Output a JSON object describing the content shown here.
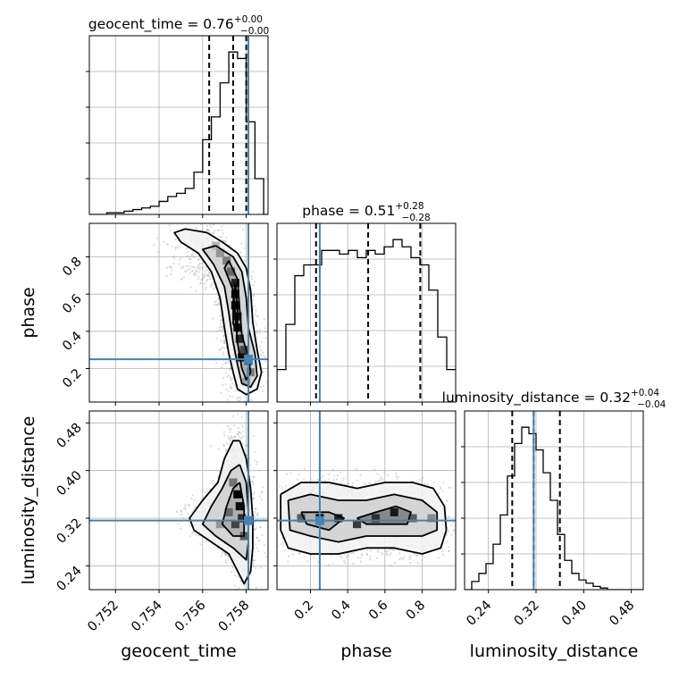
{
  "chart_data": {
    "type": "corner",
    "parameters": [
      "geocent_time",
      "phase",
      "luminosity_distance"
    ],
    "titles": {
      "geocent_time": {
        "name": "geocent_time",
        "median": "0.76",
        "plus": "+0.00",
        "minus": "−0.00"
      },
      "phase": {
        "name": "phase",
        "median": "0.51",
        "plus": "+0.28",
        "minus": "−0.28"
      },
      "luminosity_distance": {
        "name": "luminosity_distance",
        "median": "0.32",
        "plus": "+0.04",
        "minus": "−0.04"
      }
    },
    "ranges": {
      "geocent_time": [
        0.7508,
        0.759
      ],
      "phase": [
        0.02,
        0.98
      ],
      "luminosity_distance": [
        0.2,
        0.5
      ]
    },
    "ticks": {
      "geocent_time": [
        "0.752",
        "0.754",
        "0.756",
        "0.758"
      ],
      "phase": [
        "0.2",
        "0.4",
        "0.6",
        "0.8"
      ],
      "luminosity_distance": [
        "0.24",
        "0.32",
        "0.40",
        "0.48"
      ]
    },
    "truths": {
      "geocent_time": 0.7581,
      "phase": 0.25,
      "luminosity_distance": 0.316
    },
    "quantiles": {
      "geocent_time": [
        0.7563,
        0.7574,
        0.758
      ],
      "phase": [
        0.23,
        0.51,
        0.79
      ],
      "luminosity_distance": [
        0.28,
        0.316,
        0.36
      ]
    },
    "histograms": {
      "geocent_time": {
        "bin_edges": [
          0.7508,
          0.7512,
          0.7516,
          0.752,
          0.7524,
          0.7528,
          0.7532,
          0.7536,
          0.754,
          0.7544,
          0.7548,
          0.7552,
          0.7556,
          0.756,
          0.7564,
          0.7568,
          0.7572,
          0.7576,
          0.758,
          0.7584,
          0.7588,
          0.759
        ],
        "counts": [
          0,
          0,
          1,
          1,
          2,
          3,
          4,
          5,
          8,
          11,
          13,
          16,
          26,
          46,
          60,
          81,
          100,
          96,
          57,
          22,
          0
        ]
      },
      "phase": {
        "bin_edges": [
          0.02,
          0.068,
          0.116,
          0.164,
          0.212,
          0.26,
          0.308,
          0.356,
          0.404,
          0.452,
          0.5,
          0.548,
          0.596,
          0.644,
          0.692,
          0.74,
          0.788,
          0.836,
          0.884,
          0.932,
          0.98
        ],
        "counts": [
          18,
          43,
          70,
          76,
          76,
          84,
          84,
          82,
          84,
          80,
          84,
          82,
          86,
          90,
          86,
          80,
          76,
          62,
          36,
          18
        ]
      },
      "luminosity_distance": {
        "bin_edges": [
          0.2,
          0.212,
          0.224,
          0.236,
          0.248,
          0.26,
          0.272,
          0.284,
          0.296,
          0.308,
          0.32,
          0.332,
          0.344,
          0.356,
          0.368,
          0.38,
          0.392,
          0.404,
          0.416,
          0.428,
          0.44,
          0.452,
          0.464,
          0.476,
          0.488,
          0.5
        ],
        "counts": [
          0,
          5,
          10,
          16,
          28,
          46,
          70,
          90,
          100,
          96,
          86,
          72,
          55,
          34,
          18,
          10,
          6,
          4,
          2,
          1,
          0,
          0,
          0,
          0,
          0
        ]
      }
    },
    "pairs": [
      {
        "x": "geocent_time",
        "y": "phase",
        "contours": [
          [
            [
              0.7562,
              0.93
            ],
            [
              0.7569,
              0.88
            ],
            [
              0.7576,
              0.82
            ],
            [
              0.758,
              0.74
            ],
            [
              0.7582,
              0.62
            ],
            [
              0.7583,
              0.45
            ],
            [
              0.7585,
              0.3
            ],
            [
              0.7587,
              0.18
            ],
            [
              0.7585,
              0.09
            ],
            [
              0.758,
              0.06
            ],
            [
              0.7576,
              0.09
            ],
            [
              0.7574,
              0.18
            ],
            [
              0.7572,
              0.28
            ],
            [
              0.757,
              0.42
            ],
            [
              0.7568,
              0.58
            ],
            [
              0.7564,
              0.72
            ],
            [
              0.7558,
              0.82
            ],
            [
              0.755,
              0.88
            ],
            [
              0.7547,
              0.93
            ],
            [
              0.7552,
              0.95
            ],
            [
              0.7562,
              0.93
            ]
          ],
          [
            [
              0.7566,
              0.86
            ],
            [
              0.7574,
              0.8
            ],
            [
              0.7578,
              0.72
            ],
            [
              0.758,
              0.58
            ],
            [
              0.7581,
              0.42
            ],
            [
              0.7584,
              0.28
            ],
            [
              0.7585,
              0.16
            ],
            [
              0.7582,
              0.1
            ],
            [
              0.7578,
              0.12
            ],
            [
              0.7576,
              0.22
            ],
            [
              0.7574,
              0.34
            ],
            [
              0.7572,
              0.5
            ],
            [
              0.757,
              0.64
            ],
            [
              0.7565,
              0.76
            ],
            [
              0.756,
              0.84
            ],
            [
              0.7566,
              0.86
            ]
          ],
          [
            [
              0.7572,
              0.78
            ],
            [
              0.7576,
              0.68
            ],
            [
              0.7577,
              0.52
            ],
            [
              0.7578,
              0.38
            ],
            [
              0.7581,
              0.26
            ],
            [
              0.7582,
              0.18
            ],
            [
              0.758,
              0.14
            ],
            [
              0.7578,
              0.2
            ],
            [
              0.7576,
              0.34
            ],
            [
              0.7575,
              0.48
            ],
            [
              0.7574,
              0.62
            ],
            [
              0.757,
              0.74
            ],
            [
              0.7572,
              0.78
            ]
          ],
          [
            [
              0.7575,
              0.66
            ],
            [
              0.7576,
              0.52
            ],
            [
              0.7576,
              0.4
            ],
            [
              0.7574,
              0.44
            ],
            [
              0.7574,
              0.56
            ],
            [
              0.7575,
              0.66
            ]
          ]
        ],
        "density": [
          {
            "x": 0.7566,
            "y": 0.86,
            "v": 0.2
          },
          {
            "x": 0.7568,
            "y": 0.82,
            "v": 0.35
          },
          {
            "x": 0.7571,
            "y": 0.78,
            "v": 0.45
          },
          {
            "x": 0.7573,
            "y": 0.72,
            "v": 0.55
          },
          {
            "x": 0.7575,
            "y": 0.66,
            "v": 0.85
          },
          {
            "x": 0.7575,
            "y": 0.6,
            "v": 0.95
          },
          {
            "x": 0.7575,
            "y": 0.54,
            "v": 1.0
          },
          {
            "x": 0.7576,
            "y": 0.48,
            "v": 0.9
          },
          {
            "x": 0.7576,
            "y": 0.42,
            "v": 0.95
          },
          {
            "x": 0.7577,
            "y": 0.36,
            "v": 0.85
          },
          {
            "x": 0.7579,
            "y": 0.3,
            "v": 0.7
          },
          {
            "x": 0.7581,
            "y": 0.24,
            "v": 0.6
          },
          {
            "x": 0.7582,
            "y": 0.18,
            "v": 0.45
          },
          {
            "x": 0.758,
            "y": 0.13,
            "v": 0.3
          },
          {
            "x": 0.7578,
            "y": 0.26,
            "v": 0.95
          }
        ]
      },
      {
        "x": "geocent_time",
        "y": "luminosity_distance",
        "contours": [
          [
            [
              0.7577,
              0.45
            ],
            [
              0.758,
              0.42
            ],
            [
              0.7582,
              0.37
            ],
            [
              0.7583,
              0.32
            ],
            [
              0.7583,
              0.27
            ],
            [
              0.7582,
              0.23
            ],
            [
              0.7579,
              0.21
            ],
            [
              0.7572,
              0.26
            ],
            [
              0.7564,
              0.28
            ],
            [
              0.7556,
              0.3
            ],
            [
              0.7554,
              0.32
            ],
            [
              0.756,
              0.35
            ],
            [
              0.7567,
              0.38
            ],
            [
              0.757,
              0.42
            ],
            [
              0.7574,
              0.45
            ],
            [
              0.7577,
              0.45
            ]
          ],
          [
            [
              0.7577,
              0.41
            ],
            [
              0.758,
              0.38
            ],
            [
              0.7581,
              0.33
            ],
            [
              0.7581,
              0.28
            ],
            [
              0.758,
              0.25
            ],
            [
              0.7574,
              0.27
            ],
            [
              0.7566,
              0.29
            ],
            [
              0.756,
              0.31
            ],
            [
              0.7564,
              0.34
            ],
            [
              0.7569,
              0.37
            ],
            [
              0.7573,
              0.4
            ],
            [
              0.7577,
              0.41
            ]
          ],
          [
            [
              0.7577,
              0.38
            ],
            [
              0.7579,
              0.34
            ],
            [
              0.7579,
              0.29
            ],
            [
              0.7574,
              0.29
            ],
            [
              0.7569,
              0.31
            ],
            [
              0.7571,
              0.34
            ],
            [
              0.7574,
              0.37
            ],
            [
              0.7577,
              0.38
            ]
          ]
        ],
        "density": [
          {
            "x": 0.7576,
            "y": 0.36,
            "v": 1.0
          },
          {
            "x": 0.7577,
            "y": 0.34,
            "v": 0.95
          },
          {
            "x": 0.7578,
            "y": 0.32,
            "v": 0.8
          },
          {
            "x": 0.7575,
            "y": 0.31,
            "v": 0.7
          },
          {
            "x": 0.7572,
            "y": 0.33,
            "v": 0.55
          },
          {
            "x": 0.7568,
            "y": 0.31,
            "v": 0.35
          },
          {
            "x": 0.7579,
            "y": 0.29,
            "v": 0.6
          },
          {
            "x": 0.7574,
            "y": 0.38,
            "v": 0.5
          }
        ]
      },
      {
        "x": "phase",
        "y": "luminosity_distance",
        "contours": [
          [
            [
              0.04,
              0.36
            ],
            [
              0.15,
              0.38
            ],
            [
              0.3,
              0.38
            ],
            [
              0.45,
              0.37
            ],
            [
              0.6,
              0.38
            ],
            [
              0.75,
              0.38
            ],
            [
              0.86,
              0.37
            ],
            [
              0.92,
              0.34
            ],
            [
              0.93,
              0.3
            ],
            [
              0.9,
              0.27
            ],
            [
              0.8,
              0.26
            ],
            [
              0.65,
              0.27
            ],
            [
              0.5,
              0.27
            ],
            [
              0.35,
              0.26
            ],
            [
              0.2,
              0.26
            ],
            [
              0.08,
              0.27
            ],
            [
              0.04,
              0.3
            ],
            [
              0.04,
              0.36
            ]
          ],
          [
            [
              0.08,
              0.35
            ],
            [
              0.2,
              0.36
            ],
            [
              0.35,
              0.35
            ],
            [
              0.5,
              0.35
            ],
            [
              0.65,
              0.36
            ],
            [
              0.8,
              0.35
            ],
            [
              0.88,
              0.33
            ],
            [
              0.88,
              0.3
            ],
            [
              0.8,
              0.29
            ],
            [
              0.65,
              0.29
            ],
            [
              0.5,
              0.29
            ],
            [
              0.35,
              0.28
            ],
            [
              0.2,
              0.29
            ],
            [
              0.09,
              0.3
            ],
            [
              0.08,
              0.35
            ]
          ],
          [
            [
              0.15,
              0.33
            ],
            [
              0.3,
              0.33
            ],
            [
              0.38,
              0.32
            ],
            [
              0.3,
              0.3
            ],
            [
              0.18,
              0.31
            ],
            [
              0.15,
              0.33
            ]
          ],
          [
            [
              0.45,
              0.32
            ],
            [
              0.55,
              0.33
            ],
            [
              0.66,
              0.34
            ],
            [
              0.74,
              0.33
            ],
            [
              0.72,
              0.31
            ],
            [
              0.62,
              0.31
            ],
            [
              0.5,
              0.31
            ],
            [
              0.45,
              0.32
            ]
          ]
        ],
        "density": [
          {
            "x": 0.25,
            "y": 0.32,
            "v": 1.0
          },
          {
            "x": 0.35,
            "y": 0.32,
            "v": 0.85
          },
          {
            "x": 0.55,
            "y": 0.32,
            "v": 0.8
          },
          {
            "x": 0.65,
            "y": 0.33,
            "v": 0.9
          },
          {
            "x": 0.15,
            "y": 0.32,
            "v": 0.6
          },
          {
            "x": 0.45,
            "y": 0.31,
            "v": 0.75
          },
          {
            "x": 0.75,
            "y": 0.32,
            "v": 0.6
          },
          {
            "x": 0.85,
            "y": 0.32,
            "v": 0.4
          }
        ]
      }
    ],
    "colors": {
      "truth": "#4682b4",
      "histogram": "#000000",
      "quantile": "#000000",
      "contour": "#000000",
      "grid": "#b0b0b0",
      "scatter": "#9a9a9a"
    },
    "grid": true
  }
}
